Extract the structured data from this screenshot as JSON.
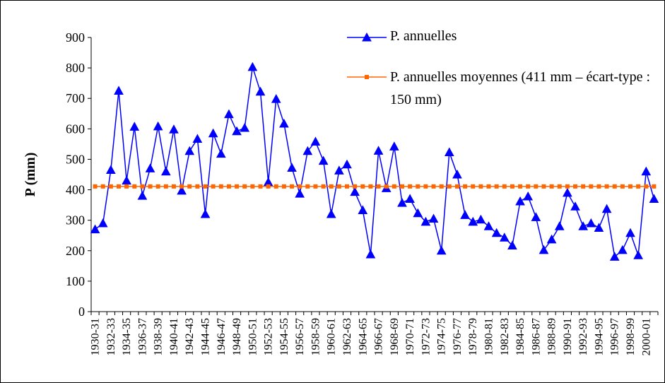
{
  "chart_data": {
    "type": "line",
    "y_label": "P (mm)",
    "categories": [
      "1930-31",
      null,
      "1932-33",
      null,
      "1934-35",
      null,
      "1936-37",
      null,
      "1938-39",
      null,
      "1940-41",
      null,
      "1942-43",
      null,
      "1944-45",
      null,
      "1946-47",
      null,
      "1948-49",
      null,
      "1950-51",
      null,
      "1952-53",
      null,
      "1954-55",
      null,
      "1956-57",
      null,
      "1958-59",
      null,
      "1960-61",
      null,
      "1962-63",
      null,
      "1964-65",
      null,
      "1966-67",
      null,
      "1968-69",
      null,
      "1970-71",
      null,
      "1972-73",
      null,
      "1974-75",
      null,
      "1976-77",
      null,
      "1978-79",
      null,
      "1980-81",
      null,
      "1982-83",
      null,
      "1984-85",
      null,
      "1986-87",
      null,
      "1988-89",
      null,
      "1990-91",
      null,
      "1992-93",
      null,
      "1994-95",
      null,
      "1996-97",
      null,
      "1998-99",
      null,
      "2000-01",
      null
    ],
    "series": [
      {
        "name": "P. annuelles",
        "color": "#0000ff",
        "marker": "triangle",
        "values": [
          270,
          290,
          465,
          725,
          430,
          607,
          380,
          470,
          608,
          460,
          598,
          397,
          527,
          567,
          320,
          585,
          518,
          648,
          592,
          603,
          803,
          722,
          425,
          698,
          617,
          472,
          387,
          527,
          558,
          495,
          320,
          463,
          483,
          393,
          333,
          188,
          528,
          405,
          542,
          357,
          370,
          323,
          295,
          305,
          200,
          523,
          450,
          317,
          295,
          302,
          280,
          258,
          243,
          217,
          362,
          378,
          310,
          202,
          237,
          280,
          390,
          345,
          280,
          290,
          275,
          337,
          180,
          202,
          258,
          185,
          460,
          370
        ]
      },
      {
        "name": "P. annuelles moyennes (411 mm – écart-type : 150 mm)",
        "color": "#ff6600",
        "marker": "square",
        "values": [
          411,
          411,
          411,
          411,
          411,
          411,
          411,
          411,
          411,
          411,
          411,
          411,
          411,
          411,
          411,
          411,
          411,
          411,
          411,
          411,
          411,
          411,
          411,
          411,
          411,
          411,
          411,
          411,
          411,
          411,
          411,
          411,
          411,
          411,
          411,
          411,
          411,
          411,
          411,
          411,
          411,
          411,
          411,
          411,
          411,
          411,
          411,
          411,
          411,
          411,
          411,
          411,
          411,
          411,
          411,
          411,
          411,
          411,
          411,
          411,
          411,
          411,
          411,
          411,
          411,
          411,
          411,
          411,
          411,
          411,
          411,
          411
        ]
      }
    ],
    "ylim": [
      0,
      900
    ],
    "yticks": [
      0,
      100,
      200,
      300,
      400,
      500,
      600,
      700,
      800,
      900
    ]
  }
}
